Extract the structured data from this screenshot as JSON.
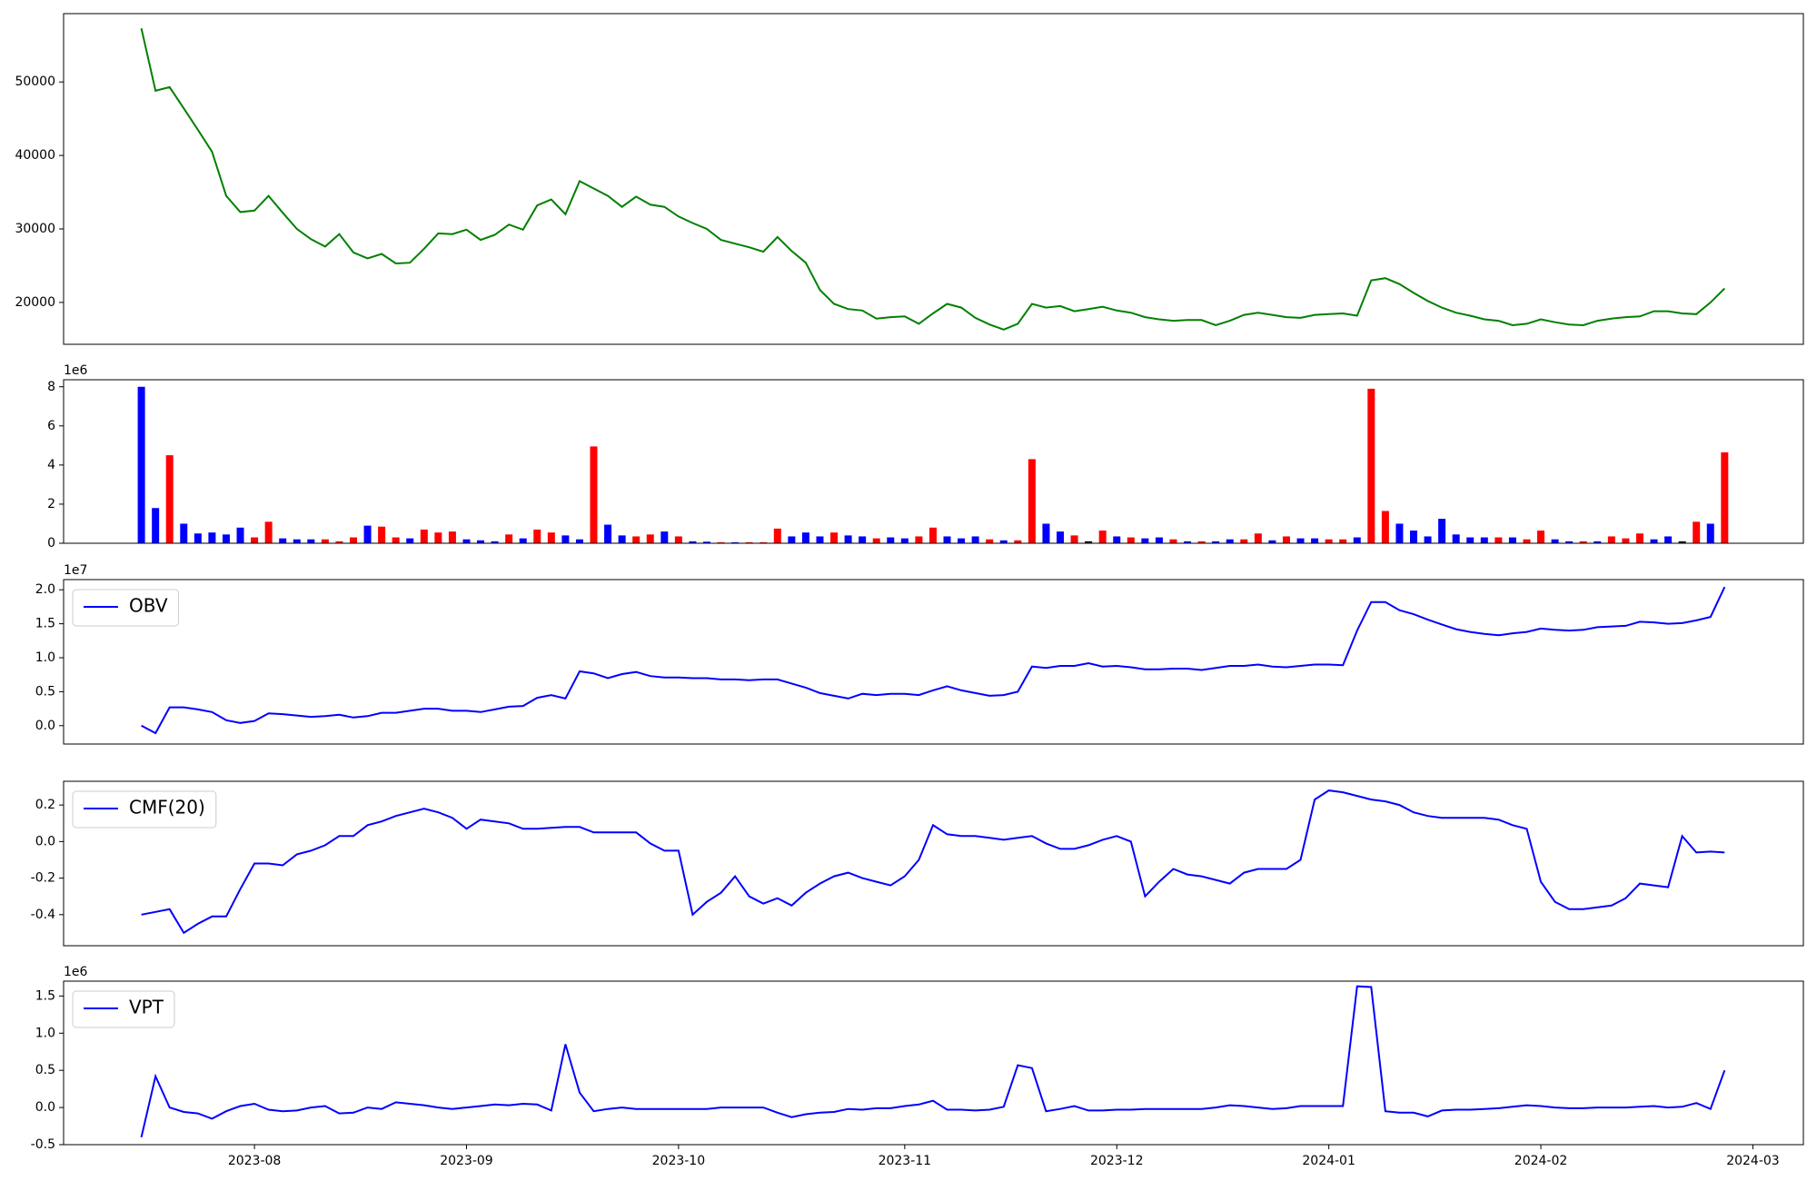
{
  "chart_data": [
    {
      "type": "line",
      "series": [
        {
          "color": "#008000",
          "values": [
            57300,
            48800,
            49300,
            46400,
            43500,
            40500,
            34500,
            32300,
            32500,
            34500,
            32200,
            30000,
            28600,
            27600,
            29300,
            26800,
            26000,
            26600,
            25300,
            25400,
            27300,
            29400,
            29300,
            29900,
            28500,
            29200,
            30600,
            29900,
            33200,
            34000,
            32000,
            36500,
            35500,
            34500,
            33000,
            34400,
            33300,
            33000,
            31700,
            30800,
            30000,
            28500,
            28000,
            27500,
            26900,
            28900,
            27000,
            25400,
            21700,
            19800,
            19100,
            18900,
            17800,
            18000,
            18100,
            17100,
            18500,
            19800,
            19300,
            17900,
            17000,
            16300,
            17100,
            19800,
            19300,
            19500,
            18800,
            19100,
            19400,
            18900,
            18600,
            18000,
            17700,
            17500,
            17600,
            17600,
            16900,
            17500,
            18300,
            18600,
            18300,
            18000,
            17900,
            18300,
            18400,
            18500,
            18200,
            23000,
            23300,
            22500,
            21300,
            20200,
            19300,
            18600,
            18200,
            17700,
            17500,
            16900,
            17100,
            17700,
            17300,
            17000,
            16900,
            17500,
            17800,
            18000,
            18100,
            18800,
            18800,
            18500,
            18400,
            20000,
            21900,
            null,
            null
          ]
        }
      ],
      "ylim": [
        14300,
        59300
      ],
      "yticks": [
        20000,
        30000,
        40000,
        50000
      ]
    },
    {
      "type": "bar",
      "offset_label": "1e6",
      "values": [
        8000000.0,
        1800000.0,
        4500000.0,
        1000000.0,
        500000.0,
        550000.0,
        450000.0,
        800000.0,
        300000.0,
        1100000.0,
        250000.0,
        200000.0,
        200000.0,
        200000.0,
        100000.0,
        300000.0,
        900000.0,
        850000.0,
        300000.0,
        250000.0,
        700000.0,
        550000.0,
        600000.0,
        200000.0,
        150000.0,
        100000.0,
        450000.0,
        250000.0,
        700000.0,
        550000.0,
        400000.0,
        200000.0,
        4950000.0,
        950000.0,
        400000.0,
        350000.0,
        450000.0,
        600000.0,
        350000.0,
        100000.0,
        80000.0,
        50000.0,
        50000.0,
        50000.0,
        50000.0,
        750000.0,
        350000.0,
        550000.0,
        350000.0,
        550000.0,
        400000.0,
        350000.0,
        250000.0,
        300000.0,
        250000.0,
        350000.0,
        800000.0,
        350000.0,
        250000.0,
        350000.0,
        200000.0,
        150000.0,
        150000.0,
        4300000.0,
        1000000.0,
        600000.0,
        400000.0,
        100000.0,
        650000.0,
        350000.0,
        300000.0,
        250000.0,
        300000.0,
        200000.0,
        100000.0,
        100000.0,
        100000.0,
        200000.0,
        200000.0,
        500000.0,
        150000.0,
        350000.0,
        250000.0,
        250000.0,
        200000.0,
        200000.0,
        300000.0,
        7900000.0,
        1650000.0,
        1000000.0,
        650000.0,
        350000.0,
        1250000.0,
        450000.0,
        300000.0,
        300000.0,
        300000.0,
        300000.0,
        200000.0,
        650000.0,
        200000.0,
        100000.0,
        100000.0,
        100000.0,
        350000.0,
        250000.0,
        500000.0,
        200000.0,
        350000.0,
        100000.0,
        1100000.0,
        1000000.0,
        4650000.0,
        null,
        null
      ],
      "colors": [
        "blue",
        "blue",
        "red",
        "blue",
        "blue",
        "blue",
        "blue",
        "blue",
        "red",
        "red",
        "blue",
        "blue",
        "blue",
        "red",
        "red",
        "red",
        "blue",
        "red",
        "red",
        "blue",
        "red",
        "red",
        "red",
        "blue",
        "blue",
        "blue",
        "red",
        "blue",
        "red",
        "red",
        "blue",
        "blue",
        "red",
        "blue",
        "blue",
        "red",
        "red",
        "blue",
        "red",
        "blue",
        "blue",
        "red",
        "blue",
        "red",
        "red",
        "red",
        "blue",
        "blue",
        "blue",
        "red",
        "blue",
        "blue",
        "red",
        "blue",
        "blue",
        "red",
        "red",
        "blue",
        "blue",
        "blue",
        "red",
        "blue",
        "red",
        "red",
        "blue",
        "blue",
        "red",
        "black",
        "red",
        "blue",
        "red",
        "blue",
        "blue",
        "red",
        "blue",
        "red",
        "blue",
        "blue",
        "red",
        "red",
        "blue",
        "red",
        "blue",
        "blue",
        "red",
        "red",
        "blue",
        "red",
        "red",
        "blue",
        "blue",
        "blue",
        "blue",
        "blue",
        "blue",
        "blue",
        "red",
        "blue",
        "red",
        "red",
        "blue",
        "blue",
        "red",
        "blue",
        "red",
        "red",
        "red",
        "blue",
        "blue",
        "black",
        "red",
        "blue",
        "red",
        null,
        null
      ],
      "ylim": [
        0,
        8360000
      ],
      "yticks": [
        0,
        {
          "value": 2000000.0,
          "label": "2"
        },
        {
          "value": 4000000.0,
          "label": "4"
        },
        {
          "value": 6000000.0,
          "label": "6"
        },
        {
          "value": 8000000.0,
          "label": "8"
        }
      ]
    },
    {
      "type": "line",
      "offset_label": "1e7",
      "legend": "upper left",
      "series": [
        {
          "name": "OBV",
          "color": "#0000ff",
          "values": [
            0,
            -1100000.0,
            2700000.0,
            2700000.0,
            2400000.0,
            2000000.0,
            800000.0,
            400000.0,
            700000.0,
            1800000.0,
            1700000.0,
            1500000.0,
            1300000.0,
            1400000.0,
            1600000.0,
            1200000.0,
            1400000.0,
            1900000.0,
            1900000.0,
            2200000.0,
            2500000.0,
            2500000.0,
            2200000.0,
            2200000.0,
            2000000.0,
            2400000.0,
            2800000.0,
            2900000.0,
            4100000.0,
            4500000.0,
            4000000.0,
            8000000.0,
            7700000.0,
            7000000.0,
            7600000.0,
            7900000.0,
            7300000.0,
            7100000.0,
            7100000.0,
            7000000.0,
            7000000.0,
            6800000.0,
            6800000.0,
            6700000.0,
            6800000.0,
            6800000.0,
            6200000.0,
            5600000.0,
            4800000.0,
            4400000.0,
            4000000.0,
            4700000.0,
            4500000.0,
            4700000.0,
            4700000.0,
            4500000.0,
            5200000.0,
            5800000.0,
            5200000.0,
            4800000.0,
            4400000.0,
            4500000.0,
            5000000.0,
            8700000.0,
            8500000.0,
            8800000.0,
            8800000.0,
            9200000.0,
            8700000.0,
            8800000.0,
            8600000.0,
            8300000.0,
            8300000.0,
            8400000.0,
            8400000.0,
            8200000.0,
            8500000.0,
            8800000.0,
            8800000.0,
            9000000.0,
            8700000.0,
            8600000.0,
            8800000.0,
            9000000.0,
            9000000.0,
            8900000.0,
            14000000.0,
            18200000.0,
            18200000.0,
            17000000.0,
            16400000.0,
            15600000.0,
            14900000.0,
            14200000.0,
            13800000.0,
            13500000.0,
            13300000.0,
            13600000.0,
            13800000.0,
            14300000.0,
            14100000.0,
            14000000.0,
            14100000.0,
            14500000.0,
            14600000.0,
            14700000.0,
            15300000.0,
            15200000.0,
            15000000.0,
            15100000.0,
            15500000.0,
            16000000.0,
            20400000.0,
            null,
            null
          ]
        }
      ],
      "ylim": [
        -2700000.0,
        21500000.0
      ],
      "yticks": [
        {
          "value": 0,
          "label": "0.0"
        },
        {
          "value": 5000000.0,
          "label": "0.5"
        },
        {
          "value": 10000000.0,
          "label": "1.0"
        },
        {
          "value": 15000000.0,
          "label": "1.5"
        },
        {
          "value": 20000000.0,
          "label": "2.0"
        }
      ]
    },
    {
      "type": "line",
      "legend": "upper left",
      "series": [
        {
          "name": "CMF(20)",
          "color": "#0000ff",
          "values": [
            -0.4,
            -0.385,
            -0.37,
            -0.5,
            -0.45,
            -0.41,
            -0.41,
            -0.26,
            -0.12,
            -0.12,
            -0.13,
            -0.07,
            -0.05,
            -0.02,
            0.03,
            0.03,
            0.09,
            0.11,
            0.14,
            0.16,
            0.18,
            0.16,
            0.13,
            0.07,
            0.12,
            0.11,
            0.1,
            0.07,
            0.07,
            0.075,
            0.08,
            0.08,
            0.05,
            0.05,
            0.05,
            0.05,
            -0.01,
            -0.05,
            -0.05,
            -0.4,
            -0.33,
            -0.28,
            -0.19,
            -0.3,
            -0.34,
            -0.31,
            -0.35,
            -0.28,
            -0.23,
            -0.19,
            -0.17,
            -0.2,
            -0.22,
            -0.24,
            -0.19,
            -0.1,
            0.09,
            0.04,
            0.03,
            0.03,
            0.02,
            0.01,
            0.02,
            0.03,
            -0.01,
            -0.04,
            -0.04,
            -0.02,
            0.01,
            0.03,
            0,
            -0.3,
            -0.22,
            -0.15,
            -0.18,
            -0.19,
            -0.21,
            -0.23,
            -0.17,
            -0.15,
            -0.15,
            -0.15,
            -0.1,
            0.23,
            0.28,
            0.27,
            0.25,
            0.23,
            0.22,
            0.2,
            0.16,
            0.14,
            0.13,
            0.13,
            0.13,
            0.13,
            0.12,
            0.09,
            0.07,
            -0.22,
            -0.33,
            -0.37,
            -0.37,
            -0.36,
            -0.35,
            -0.31,
            -0.23,
            -0.24,
            -0.25,
            0.03,
            -0.06,
            -0.055,
            -0.06,
            null,
            null
          ]
        }
      ],
      "ylim": [
        -0.57,
        0.33
      ],
      "yticks": [
        -0.4,
        -0.2,
        {
          "value": 0,
          "label": "0.0"
        },
        0.2
      ]
    },
    {
      "type": "line",
      "offset_label": "1e6",
      "legend": "upper left",
      "series": [
        {
          "name": "VPT",
          "color": "#0000ff",
          "values": [
            -400000.0,
            420000.0,
            0,
            -60000.0,
            -80000.0,
            -150000.0,
            -50000.0,
            20000.0,
            50000.0,
            -30000.0,
            -50000.0,
            -40000.0,
            0,
            20000.0,
            -80000.0,
            -70000.0,
            0,
            -20000.0,
            70000.0,
            50000.0,
            30000.0,
            0,
            -20000.0,
            0,
            20000.0,
            40000.0,
            30000.0,
            50000.0,
            40000.0,
            -40000.0,
            850000.0,
            200000.0,
            -50000.0,
            -20000.0,
            0,
            -20000.0,
            -20000.0,
            -20000.0,
            -20000.0,
            -20000.0,
            -20000.0,
            0,
            0,
            0,
            0,
            -70000.0,
            -130000.0,
            -90000.0,
            -70000.0,
            -60000.0,
            -20000.0,
            -30000.0,
            -10000.0,
            -10000.0,
            20000.0,
            40000.0,
            90000.0,
            -30000.0,
            -30000.0,
            -40000.0,
            -30000.0,
            10000.0,
            570000.0,
            530000.0,
            -50000.0,
            -20000.0,
            20000.0,
            -40000.0,
            -40000.0,
            -30000.0,
            -30000.0,
            -20000.0,
            -20000.0,
            -20000.0,
            -20000.0,
            -20000.0,
            0,
            30000.0,
            20000.0,
            0,
            -20000.0,
            -10000.0,
            20000.0,
            20000.0,
            20000.0,
            20000.0,
            1630000.0,
            1620000.0,
            -50000.0,
            -70000.0,
            -70000.0,
            -120000.0,
            -40000.0,
            -30000.0,
            -30000.0,
            -20000.0,
            -10000.0,
            10000.0,
            30000.0,
            20000.0,
            0,
            -10000.0,
            -10000.0,
            0,
            0,
            0,
            10000.0,
            20000.0,
            0,
            10000.0,
            60000.0,
            -20000.0,
            500000.0,
            null,
            null
          ]
        }
      ],
      "ylim": [
        -500000.0,
        1700000.0
      ],
      "yticks": [
        {
          "value": -500000.0,
          "label": "-0.5"
        },
        {
          "value": 0,
          "label": "0.0"
        },
        {
          "value": 500000.0,
          "label": "0.5"
        },
        {
          "value": 1000000.0,
          "label": "1.0"
        },
        {
          "value": 1500000.0,
          "label": "1.5"
        }
      ],
      "categories": [
        null,
        null,
        null,
        null,
        null,
        null,
        null,
        null,
        "2023-08",
        null,
        null,
        null,
        null,
        null,
        null,
        null,
        null,
        null,
        null,
        null,
        null,
        null,
        null,
        "2023-09",
        null,
        null,
        null,
        null,
        null,
        null,
        null,
        null,
        null,
        null,
        null,
        null,
        null,
        null,
        "2023-10",
        null,
        null,
        null,
        null,
        null,
        null,
        null,
        null,
        null,
        null,
        null,
        null,
        null,
        null,
        null,
        "2023-11",
        null,
        null,
        null,
        null,
        null,
        null,
        null,
        null,
        null,
        null,
        null,
        null,
        null,
        null,
        "2023-12",
        null,
        null,
        null,
        null,
        null,
        null,
        null,
        null,
        null,
        null,
        null,
        null,
        null,
        null,
        "2024-01",
        null,
        null,
        null,
        null,
        null,
        null,
        null,
        null,
        null,
        null,
        null,
        null,
        null,
        null,
        "2024-02",
        null,
        null,
        null,
        null,
        null,
        null,
        null,
        null,
        null,
        null,
        null,
        null,
        null,
        null,
        "2024-03"
      ]
    }
  ]
}
